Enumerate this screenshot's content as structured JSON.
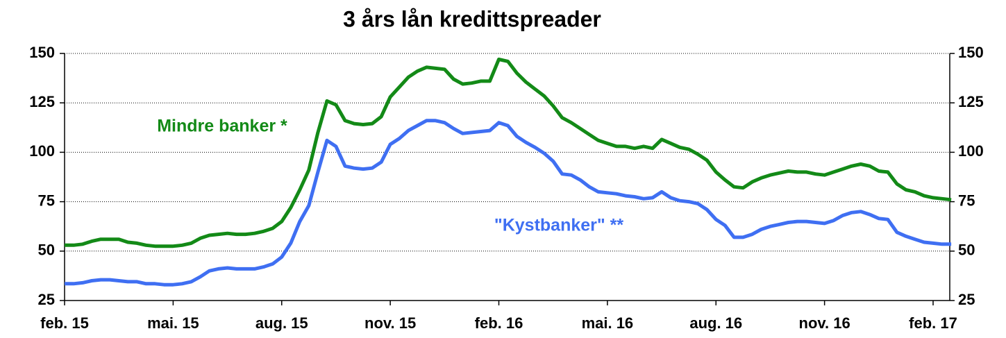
{
  "chart_data": {
    "type": "line",
    "title": "3 års lån kredittspreader",
    "categories": [
      "feb. 15",
      null,
      null,
      null,
      null,
      null,
      null,
      null,
      null,
      null,
      null,
      null,
      "mai. 15",
      null,
      null,
      null,
      null,
      null,
      null,
      null,
      null,
      null,
      null,
      null,
      "aug. 15",
      null,
      null,
      null,
      null,
      null,
      null,
      null,
      null,
      null,
      null,
      null,
      "nov. 15",
      null,
      null,
      null,
      null,
      null,
      null,
      null,
      null,
      null,
      null,
      null,
      "feb. 16",
      null,
      null,
      null,
      null,
      null,
      null,
      null,
      null,
      null,
      null,
      null,
      "mai. 16",
      null,
      null,
      null,
      null,
      null,
      null,
      null,
      null,
      null,
      null,
      null,
      "aug. 16",
      null,
      null,
      null,
      null,
      null,
      null,
      null,
      null,
      null,
      null,
      null,
      "nov. 16",
      null,
      null,
      null,
      null,
      null,
      null,
      null,
      null,
      null,
      null,
      null,
      "feb. 17",
      null,
      null
    ],
    "series": [
      {
        "name": "Mindre banker *",
        "color": "#138a17",
        "values": [
          53,
          53,
          53.5,
          55,
          56,
          56,
          56,
          54.5,
          54,
          53,
          52.5,
          52.5,
          52.5,
          53,
          54,
          56.5,
          58,
          58.5,
          59,
          58.5,
          58.5,
          59,
          60,
          61.5,
          65,
          72,
          81,
          91,
          110,
          126,
          124,
          116,
          114.5,
          114,
          114.5,
          118,
          128,
          133,
          138,
          141,
          143,
          142.5,
          142,
          137,
          134.5,
          135,
          136,
          136,
          147,
          146,
          140,
          135.5,
          132,
          128.5,
          123.5,
          117.5,
          115,
          112,
          109,
          106,
          104.5,
          103,
          103,
          102,
          103,
          102,
          106.5,
          104.5,
          102.5,
          101.5,
          99,
          96,
          90,
          86,
          82.5,
          82,
          85,
          87,
          88.5,
          89.5,
          90.5,
          90,
          90,
          89,
          88.5,
          90,
          91.5,
          93,
          94,
          93,
          90.5,
          90,
          84,
          81,
          80,
          78,
          77,
          76.5,
          76
        ]
      },
      {
        "name": "\"Kystbanker\" **",
        "color": "#3f6ff2",
        "values": [
          33.5,
          33.5,
          34,
          35,
          35.5,
          35.5,
          35,
          34.5,
          34.5,
          33.5,
          33.5,
          33,
          33,
          33.5,
          34.5,
          37,
          40,
          41,
          41.5,
          41,
          41,
          41,
          42,
          43.5,
          47,
          54,
          65,
          73,
          90,
          106,
          103,
          93,
          92,
          91.5,
          92,
          95,
          104,
          107,
          111,
          113.5,
          116,
          116,
          115,
          112,
          109.5,
          110,
          110.5,
          111,
          115,
          113.5,
          108,
          105,
          102.5,
          99.5,
          95.5,
          89,
          88.5,
          86,
          82.5,
          80,
          79.5,
          79,
          78,
          77.5,
          76.5,
          77,
          80,
          77,
          75.5,
          75,
          74,
          71,
          66,
          63,
          57,
          57,
          58.5,
          61,
          62.5,
          63.5,
          64.5,
          65,
          65,
          64.5,
          64,
          65.5,
          68,
          69.5,
          70,
          68.5,
          66.5,
          66,
          59.5,
          57.5,
          56,
          54.5,
          54,
          53.5,
          53.5
        ]
      }
    ],
    "ylim": [
      25,
      150
    ],
    "yticks": [
      25,
      50,
      75,
      100,
      125,
      150
    ],
    "y2lim": [
      25,
      150
    ],
    "y2ticks": [
      25,
      50,
      75,
      100,
      125,
      150
    ],
    "grid": true
  }
}
